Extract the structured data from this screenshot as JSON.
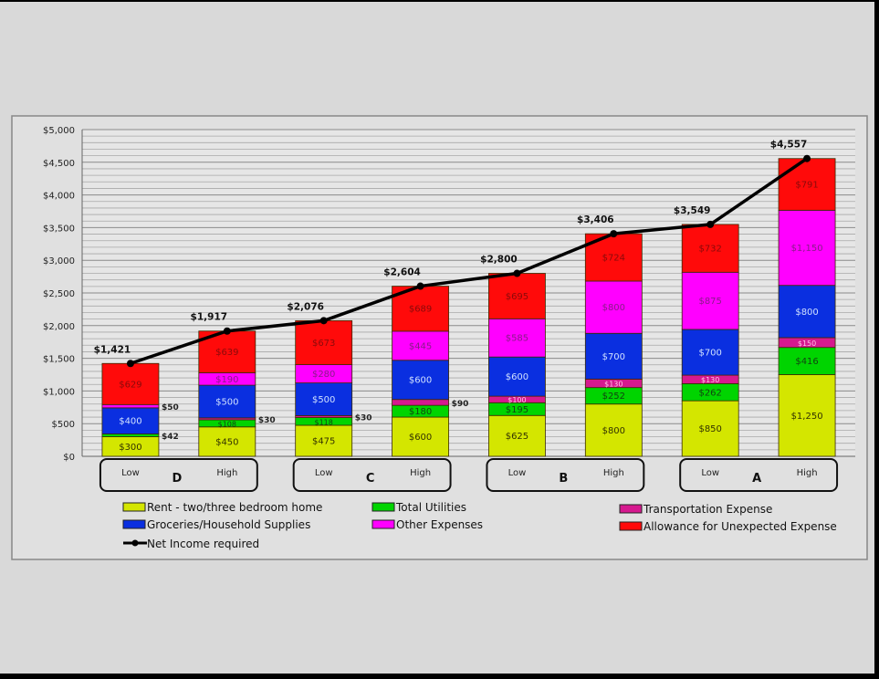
{
  "chart_data": {
    "type": "bar",
    "stacked": true,
    "title": "",
    "xlabel": "",
    "ylabel": "",
    "ylim": [
      0,
      5000
    ],
    "yticks": [
      "$0",
      "$500",
      "$1,000",
      "$1,500",
      "$2,000",
      "$2,500",
      "$3,000",
      "$3,500",
      "$4,000",
      "$4,500",
      "$5,000"
    ],
    "grid": true,
    "legend_position": "bottom",
    "groups": [
      {
        "label": "D",
        "levels": [
          "Low",
          "High"
        ]
      },
      {
        "label": "C",
        "levels": [
          "Low",
          "High"
        ]
      },
      {
        "label": "B",
        "levels": [
          "Low",
          "High"
        ]
      },
      {
        "label": "A",
        "levels": [
          "Low",
          "High"
        ]
      }
    ],
    "categories": [
      "D Low",
      "D High",
      "C Low",
      "C High",
      "B Low",
      "B High",
      "A Low",
      "A High"
    ],
    "series": [
      {
        "name": "Rent - two/three bedroom home",
        "color": "#d4e600",
        "label_color": "#333300",
        "values": [
          300,
          450,
          475,
          600,
          625,
          800,
          850,
          1250
        ],
        "labels": [
          "$300",
          "$450",
          "$475",
          "$600",
          "$625",
          "$800",
          "$850",
          "$1,250"
        ]
      },
      {
        "name": "Total Utilities",
        "color": "#00d400",
        "label_color": "#114411",
        "values": [
          42,
          108,
          118,
          180,
          195,
          252,
          262,
          416
        ],
        "labels": [
          "$42",
          "$108",
          "$118",
          "$180",
          "$195",
          "$252",
          "$262",
          "$416"
        ]
      },
      {
        "name": "Transportation Expense",
        "color": "#d6198f",
        "label_color": "#ffc0e8",
        "values": [
          0,
          30,
          30,
          90,
          100,
          130,
          130,
          150
        ],
        "labels": [
          "",
          "$30",
          "$30",
          "$90",
          "$100",
          "$130",
          "$130",
          "$150"
        ]
      },
      {
        "name": "Groceries/Household Supplies",
        "color": "#0a2fe0",
        "label_color": "#cfe0ff",
        "values": [
          400,
          500,
          500,
          600,
          600,
          700,
          700,
          800
        ],
        "labels": [
          "$400",
          "$500",
          "$500",
          "$600",
          "$600",
          "$700",
          "$700",
          "$800"
        ]
      },
      {
        "name": "Other Expenses",
        "color": "#ff00ff",
        "label_color": "#8a1a8a",
        "values": [
          50,
          190,
          280,
          445,
          585,
          800,
          875,
          1150
        ],
        "labels": [
          "$50",
          "$190",
          "$280",
          "$445",
          "$585",
          "$800",
          "$875",
          "$1,150"
        ]
      },
      {
        "name": "Allowance for Unexpected Expense",
        "color": "#ff0a0a",
        "label_color": "#8a0a0a",
        "values": [
          629,
          639,
          673,
          689,
          695,
          724,
          732,
          791
        ],
        "labels": [
          "$629",
          "$639",
          "$673",
          "$689",
          "$695",
          "$724",
          "$732",
          "$791"
        ]
      }
    ],
    "line_series": {
      "name": "Net Income required",
      "color": "#000000",
      "values": [
        1421,
        1917,
        2076,
        2604,
        2800,
        3406,
        3549,
        4557
      ],
      "labels": [
        "$1,421",
        "$1,917",
        "$2,076",
        "$2,604",
        "$2,800",
        "$3,406",
        "$3,549",
        "$4,557"
      ]
    }
  }
}
